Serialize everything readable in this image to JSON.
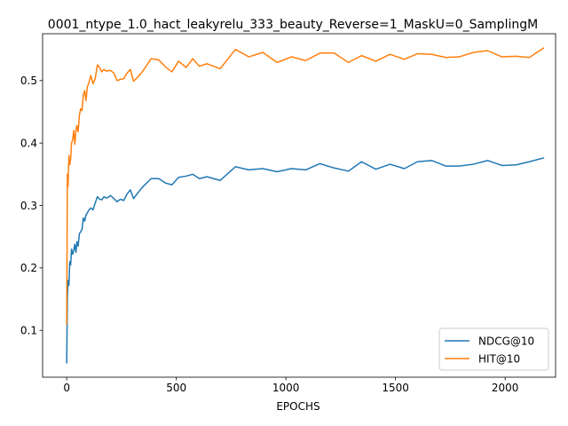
{
  "chart_data": {
    "type": "line",
    "title": "0001_ntype_1.0_hact_leakyrelu_333_beauty_Reverse=1_MaskU=0_SamplingM",
    "xlabel": "EPOCHS",
    "ylabel": "",
    "xlim": [
      -110,
      2230
    ],
    "ylim": [
      0.025,
      0.575
    ],
    "xticks": [
      0,
      500,
      1000,
      1500,
      2000
    ],
    "yticks": [
      0.1,
      0.2,
      0.3,
      0.4,
      0.5
    ],
    "xtick_labels": [
      "0",
      "500",
      "1000",
      "1500",
      "2000"
    ],
    "ytick_labels": [
      "0.1",
      "0.2",
      "0.3",
      "0.4",
      "0.5"
    ],
    "grid": false,
    "legend_position": "lower-right",
    "series": [
      {
        "name": "NDCG@10",
        "color": "#1f77b4",
        "x": [
          0,
          3,
          6,
          10,
          14,
          18,
          22,
          27,
          32,
          37,
          42,
          47,
          52,
          58,
          64,
          70,
          76,
          82,
          88,
          94,
          100,
          110,
          120,
          130,
          140,
          150,
          160,
          170,
          180,
          190,
          200,
          215,
          230,
          245,
          260,
          275,
          290,
          305,
          320,
          345,
          385,
          420,
          450,
          480,
          510,
          545,
          575,
          605,
          640,
          700,
          770,
          830,
          895,
          960,
          1025,
          1090,
          1155,
          1220,
          1285,
          1345,
          1410,
          1475,
          1540,
          1600,
          1665,
          1730,
          1790,
          1855,
          1920,
          1985,
          2050,
          2110,
          2175
        ],
        "y": [
          0.048,
          0.152,
          0.18,
          0.172,
          0.21,
          0.205,
          0.23,
          0.222,
          0.228,
          0.238,
          0.225,
          0.242,
          0.235,
          0.255,
          0.258,
          0.262,
          0.28,
          0.275,
          0.285,
          0.288,
          0.292,
          0.296,
          0.293,
          0.304,
          0.314,
          0.31,
          0.309,
          0.314,
          0.312,
          0.313,
          0.316,
          0.311,
          0.306,
          0.31,
          0.308,
          0.318,
          0.325,
          0.311,
          0.318,
          0.329,
          0.343,
          0.343,
          0.336,
          0.333,
          0.345,
          0.347,
          0.35,
          0.343,
          0.346,
          0.34,
          0.362,
          0.357,
          0.359,
          0.354,
          0.359,
          0.357,
          0.367,
          0.36,
          0.355,
          0.37,
          0.358,
          0.366,
          0.359,
          0.37,
          0.372,
          0.363,
          0.363,
          0.366,
          0.372,
          0.364,
          0.365,
          0.37,
          0.376
        ]
      },
      {
        "name": "HIT@10",
        "color": "#ff7f0e",
        "x": [
          0,
          3,
          6,
          10,
          14,
          18,
          22,
          27,
          32,
          37,
          42,
          47,
          52,
          58,
          64,
          70,
          76,
          82,
          88,
          94,
          100,
          110,
          120,
          130,
          140,
          150,
          160,
          170,
          180,
          190,
          200,
          215,
          230,
          245,
          260,
          275,
          290,
          305,
          320,
          345,
          385,
          420,
          450,
          480,
          510,
          545,
          575,
          605,
          640,
          700,
          770,
          830,
          895,
          960,
          1025,
          1090,
          1155,
          1220,
          1285,
          1345,
          1410,
          1475,
          1540,
          1600,
          1665,
          1730,
          1790,
          1855,
          1920,
          1985,
          2050,
          2110,
          2175
        ],
        "y": [
          0.11,
          0.35,
          0.33,
          0.38,
          0.365,
          0.375,
          0.4,
          0.405,
          0.42,
          0.398,
          0.42,
          0.428,
          0.418,
          0.445,
          0.455,
          0.452,
          0.478,
          0.484,
          0.468,
          0.49,
          0.495,
          0.508,
          0.495,
          0.503,
          0.525,
          0.521,
          0.514,
          0.518,
          0.515,
          0.516,
          0.516,
          0.512,
          0.5,
          0.502,
          0.503,
          0.512,
          0.518,
          0.499,
          0.504,
          0.514,
          0.535,
          0.533,
          0.522,
          0.514,
          0.531,
          0.521,
          0.535,
          0.523,
          0.527,
          0.519,
          0.55,
          0.538,
          0.545,
          0.529,
          0.538,
          0.532,
          0.544,
          0.544,
          0.529,
          0.54,
          0.531,
          0.542,
          0.534,
          0.543,
          0.542,
          0.537,
          0.538,
          0.545,
          0.548,
          0.538,
          0.539,
          0.537,
          0.552
        ]
      }
    ]
  }
}
